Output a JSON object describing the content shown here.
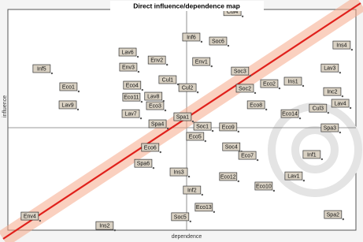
{
  "chart_data": {
    "type": "scatter",
    "title": "Direct influence/dependence map",
    "x_label": "dependence",
    "y_label": "influence",
    "xlim": [
      0,
      100
    ],
    "ylim": [
      0,
      100
    ],
    "color": "#d9d1c3",
    "labels": [
      "Cul4",
      "Inf6",
      "Soc6",
      "Env1",
      "Ins4",
      "Lav6",
      "Env2",
      "Inf5",
      "Env3",
      "Eco1",
      "Cul1",
      "Soc3",
      "Eco4",
      "Cul2",
      "Ins1",
      "Lav3",
      "Eco2",
      "Soc2",
      "Lav8",
      "Eco11",
      "Lav9",
      "Eco3",
      "Eco8",
      "Inc2",
      "Lav4",
      "Cul3",
      "Eco14",
      "Lav7",
      "Spa1",
      "Spa4",
      "Soc1",
      "Eco9",
      "Spa3",
      "Eco5",
      "Soc4",
      "Eco6",
      "Eco7",
      "Inf1",
      "Spa6",
      "Ins3",
      "Eco12",
      "Lav1",
      "Eco10",
      "Inf2",
      "Eco13",
      "Soc5",
      "Ins2",
      "Env4",
      "Spa2"
    ],
    "x": [
      64.5,
      52.7,
      60.4,
      55.6,
      95.9,
      34.4,
      42.8,
      9.7,
      34.6,
      17.4,
      45.9,
      66.7,
      35.7,
      51.6,
      81.9,
      92.5,
      75.1,
      68.1,
      41.8,
      35.5,
      17.2,
      42.3,
      71.3,
      93.2,
      95.5,
      89.1,
      81.0,
      35.3,
      50.2,
      43.0,
      55.9,
      63.3,
      92.5,
      53.8,
      64.2,
      40.9,
      68.8,
      87.3,
      38.9,
      49.1,
      63.3,
      82.1,
      73.5,
      52.9,
      56.3,
      49.5,
      27.8,
      6.3,
      93.4
    ],
    "values": [
      99,
      87.5,
      85.7,
      76.4,
      83.9,
      80.7,
      77.1,
      73.2,
      73.9,
      65.0,
      68.2,
      72.1,
      65.7,
      64.6,
      67.5,
      73.5,
      66.4,
      64.3,
      60.7,
      60.3,
      56.8,
      56.4,
      56.8,
      62.8,
      57.5,
      55.3,
      52.8,
      52.8,
      51.4,
      48.2,
      47.1,
      46.8,
      46.4,
      42.5,
      37.8,
      37.5,
      33.9,
      34.3,
      30.3,
      26.4,
      24.3,
      24.6,
      20.0,
      18.2,
      10.4,
      6.1,
      2.1,
      6.4,
      7.1
    ]
  }
}
